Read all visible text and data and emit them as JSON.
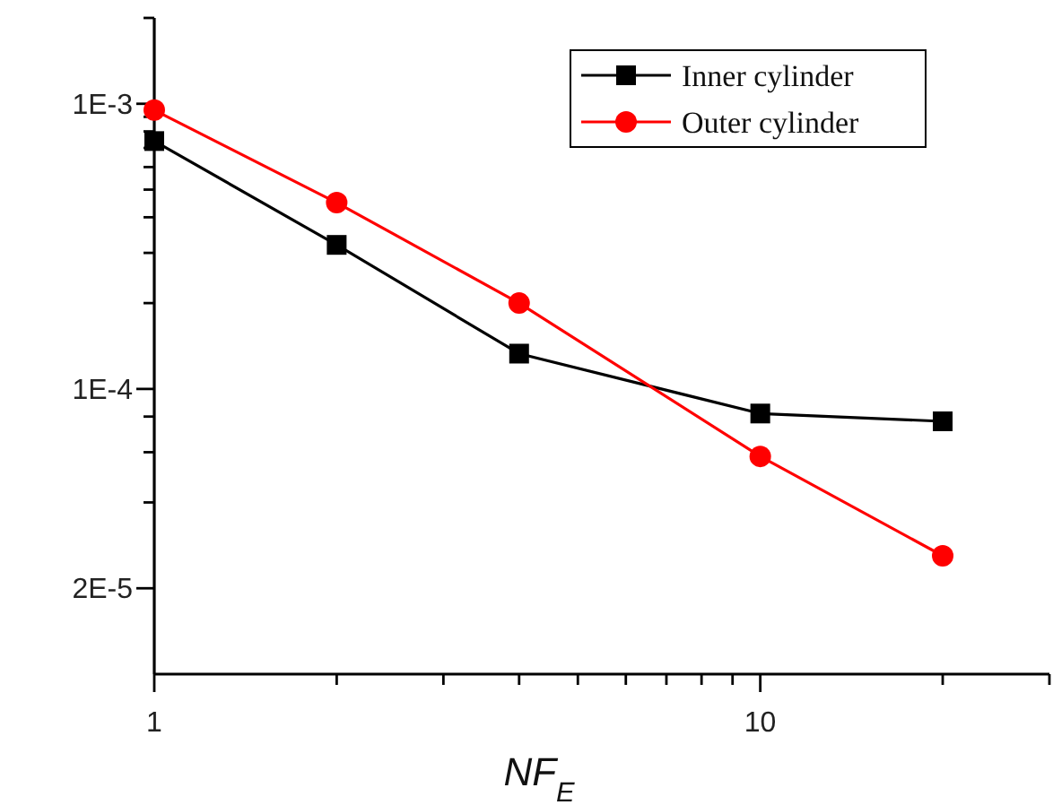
{
  "chart_data": {
    "type": "line",
    "xlabel": "NF$_{E}$",
    "log": "xy",
    "legend": "top right",
    "grid": false,
    "x": [
      1,
      2,
      4,
      10,
      20
    ],
    "xlim": [
      1,
      30
    ],
    "xticks": [
      1,
      {
        "value": 2,
        "label": null
      },
      {
        "value": 3,
        "label": null
      },
      {
        "value": 4,
        "label": null
      },
      {
        "value": 5,
        "label": null
      },
      {
        "value": 6,
        "label": null
      },
      {
        "value": 7,
        "label": null
      },
      {
        "value": 8,
        "label": null
      },
      {
        "value": 9,
        "label": null
      },
      10,
      {
        "value": 20,
        "label": null
      },
      {
        "value": 30,
        "label": null
      }
    ],
    "ylim": [
      1e-05,
      0.002
    ],
    "yticks": [
      {
        "value": 0.002,
        "label": null
      },
      {
        "value": 0.001,
        "label": "1E-3"
      },
      {
        "value": 0.0009,
        "label": null
      },
      {
        "value": 0.0008,
        "label": null
      },
      {
        "value": 0.0007,
        "label": null
      },
      {
        "value": 0.0006,
        "label": null
      },
      {
        "value": 0.0005,
        "label": null
      },
      {
        "value": 0.0004,
        "label": null
      },
      {
        "value": 0.0003,
        "label": null
      },
      {
        "value": 0.0002,
        "label": null
      },
      {
        "value": 0.0001,
        "label": "1E-4"
      },
      {
        "value": 8e-05,
        "label": null
      },
      {
        "value": 6e-05,
        "label": null
      },
      {
        "value": 4e-05,
        "label": null
      },
      {
        "value": 2e-05,
        "label": "2E-5"
      }
    ],
    "series": [
      {
        "name": "Inner cylinder",
        "color": "#000000",
        "marker": "square",
        "values": [
          0.00074,
          0.00032,
          0.000133,
          8.2e-05,
          7.7e-05
        ]
      },
      {
        "name": "Outer cylinder",
        "color": "#ff0000",
        "marker": "circle",
        "values": [
          0.00095,
          0.00045,
          0.0002,
          5.8e-05,
          2.6e-05
        ]
      }
    ]
  }
}
